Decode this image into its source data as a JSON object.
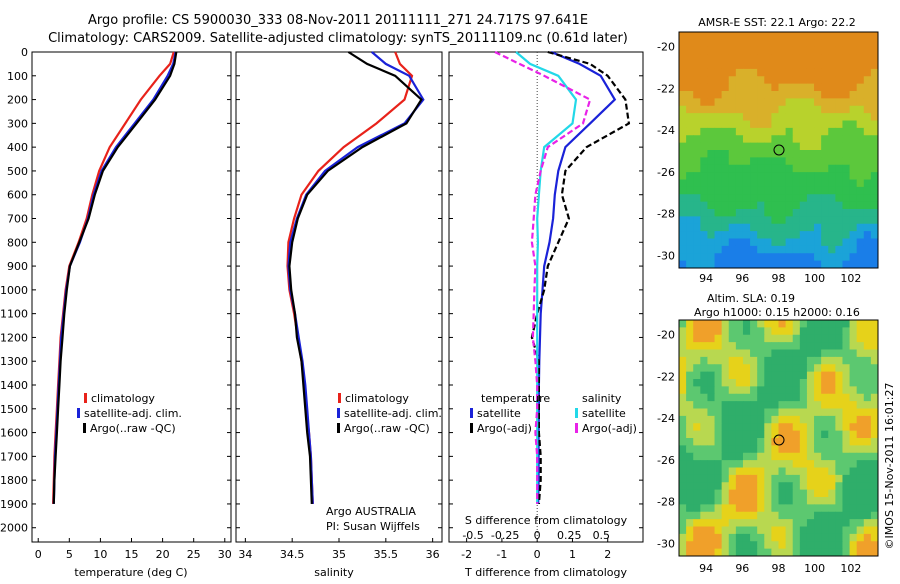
{
  "title_line1": "Argo profile: CS 5900030_333 08-Nov-2011 20111111_271 24.717S 97.641E",
  "title_line2": "Climatology: CARS2009. Satellite-adjusted climatology: synTS_20111109.nc (0.61d later)",
  "colors": {
    "climatology": "#e8221a",
    "satellite": "#1a22d8",
    "argo": "#000000",
    "sat_salinity": "#22d8e8",
    "argo_salinity": "#e822e8"
  },
  "panel1": {
    "xlabel": "temperature (deg C)",
    "xticks": [
      "0",
      "5",
      "10",
      "15",
      "20",
      "25",
      "30"
    ],
    "legend": [
      "climatology",
      "satellite-adj. clim.",
      "Argo(..raw -QC)"
    ]
  },
  "panel2": {
    "xlabel": "salinity",
    "xticks": [
      "34",
      "34.5",
      "35",
      "35.5",
      "36"
    ],
    "legend": [
      "climatology",
      "satellite-adj. clim.",
      "Argo(..raw -QC)"
    ],
    "note1": "Argo AUSTRALIA",
    "note2": "PI: Susan Wijffels"
  },
  "panel3": {
    "xlabel": "T difference from climatology",
    "top_label": "S difference from climatology",
    "xticks": [
      "-2",
      "-1",
      "0",
      "1",
      "2"
    ],
    "top_ticks": [
      "-0.5",
      "-0.25",
      "0",
      "0.25",
      "0.5"
    ],
    "legend_temp_title": "temperature",
    "legend_sal_title": "salinity",
    "legend_temp": [
      "satellite",
      "Argo(-adj)"
    ],
    "legend_sal": [
      "satellite",
      "Argo(-adj)"
    ]
  },
  "depth_ticks": [
    "0",
    "100",
    "200",
    "300",
    "400",
    "500",
    "600",
    "700",
    "800",
    "900",
    "1000",
    "1100",
    "1200",
    "1300",
    "1400",
    "1500",
    "1600",
    "1700",
    "1800",
    "1900",
    "2000"
  ],
  "map1": {
    "title": "AMSR-E SST: 22.1  Argo: 22.2",
    "xticks": [
      "94",
      "96",
      "98",
      "100",
      "102"
    ],
    "yticks": [
      "-20",
      "-22",
      "-24",
      "-26",
      "-28",
      "-30"
    ]
  },
  "map2": {
    "title1": "Altim. SLA: 0.19",
    "title2": "Argo h1000: 0.15 h2000: 0.16",
    "xticks": [
      "94",
      "96",
      "98",
      "100",
      "102"
    ],
    "yticks": [
      "-20",
      "-22",
      "-24",
      "-26",
      "-28",
      "-30"
    ]
  },
  "footer": "©IMOS 15-Nov-2011 16:01:27",
  "chart_data": [
    {
      "type": "line",
      "xlabel": "temperature (deg C)",
      "ylabel": "",
      "xlim": [
        -1,
        31
      ],
      "ylim": [
        2060,
        0
      ],
      "series": [
        {
          "name": "climatology",
          "x": [
            21.8,
            21.2,
            19.5,
            16.5,
            14,
            11.5,
            9.8,
            8.7,
            7.8,
            6.5,
            5,
            4.4,
            4,
            3.6,
            3.4,
            3.2,
            3,
            2.8,
            2.6,
            2.5,
            2.4
          ],
          "y": [
            0,
            50,
            100,
            200,
            300,
            400,
            500,
            600,
            700,
            800,
            900,
            1000,
            1100,
            1200,
            1300,
            1400,
            1500,
            1600,
            1700,
            1800,
            1900
          ]
        },
        {
          "name": "satellite-adj. clim.",
          "x": [
            22.1,
            21.7,
            20.8,
            18.5,
            15.5,
            12.5,
            10.2,
            8.9,
            8,
            6.7,
            5.1,
            4.5,
            4.1,
            3.7,
            3.5,
            3.3,
            3.1,
            2.9,
            2.7,
            2.6,
            2.5
          ],
          "y": [
            0,
            50,
            100,
            200,
            300,
            400,
            500,
            600,
            700,
            800,
            900,
            1000,
            1100,
            1200,
            1300,
            1400,
            1500,
            1600,
            1700,
            1800,
            1900
          ]
        },
        {
          "name": "Argo(..raw -QC)",
          "x": [
            22.2,
            21.9,
            21.2,
            18.8,
            15.8,
            12.8,
            10.4,
            9.1,
            8.1,
            6.6,
            5.1,
            4.6,
            4.2,
            3.9,
            3.6,
            3.4,
            3.2,
            3,
            2.8,
            2.6,
            2.5
          ],
          "y": [
            0,
            50,
            100,
            200,
            300,
            400,
            500,
            600,
            700,
            800,
            900,
            1000,
            1100,
            1200,
            1300,
            1400,
            1500,
            1600,
            1700,
            1800,
            1900
          ]
        }
      ]
    },
    {
      "type": "line",
      "xlabel": "salinity",
      "ylabel": "",
      "xlim": [
        33.9,
        36.1
      ],
      "ylim": [
        2060,
        0
      ],
      "series": [
        {
          "name": "climatology",
          "x": [
            35.6,
            35.65,
            35.78,
            35.7,
            35.4,
            35.05,
            34.78,
            34.6,
            34.52,
            34.46,
            34.45,
            34.47,
            34.52,
            34.56,
            34.6,
            34.63,
            34.65,
            34.68,
            34.7,
            34.71,
            34.72
          ],
          "y": [
            0,
            50,
            100,
            200,
            300,
            400,
            500,
            600,
            700,
            800,
            900,
            1000,
            1100,
            1200,
            1300,
            1400,
            1500,
            1600,
            1700,
            1800,
            1900
          ]
        },
        {
          "name": "satellite-adj. clim.",
          "x": [
            35.35,
            35.5,
            35.75,
            35.9,
            35.7,
            35.2,
            34.85,
            34.65,
            34.55,
            34.48,
            34.46,
            34.48,
            34.53,
            34.57,
            34.61,
            34.64,
            34.66,
            34.68,
            34.7,
            34.71,
            34.72
          ],
          "y": [
            0,
            50,
            100,
            200,
            300,
            400,
            500,
            600,
            700,
            800,
            900,
            1000,
            1100,
            1200,
            1300,
            1400,
            1500,
            1600,
            1700,
            1800,
            1900
          ]
        },
        {
          "name": "Argo(..raw -QC)",
          "x": [
            35.1,
            35.3,
            35.6,
            35.88,
            35.72,
            35.25,
            34.88,
            34.66,
            34.56,
            34.5,
            34.47,
            34.49,
            34.53,
            34.55,
            34.6,
            34.62,
            34.64,
            34.66,
            34.69,
            34.7,
            34.71
          ],
          "y": [
            0,
            50,
            100,
            200,
            300,
            400,
            500,
            600,
            700,
            800,
            900,
            1000,
            1100,
            1200,
            1300,
            1400,
            1500,
            1600,
            1700,
            1800,
            1900
          ]
        }
      ]
    },
    {
      "type": "line",
      "xlabel": "T difference from climatology",
      "ylabel": "",
      "xlim": [
        -2.5,
        3
      ],
      "ylim": [
        2060,
        0
      ],
      "series": [
        {
          "name": "temperature satellite",
          "x": [
            0.4,
            1.2,
            1.8,
            2.2,
            1.5,
            0.8,
            0.6,
            0.5,
            0.45,
            0.35,
            0.2,
            0.15,
            0.1,
            0.08,
            0.06,
            0.05,
            0.05,
            0.04,
            0.04,
            0.04,
            0.03
          ],
          "y": [
            0,
            50,
            100,
            200,
            300,
            400,
            500,
            600,
            700,
            800,
            900,
            1000,
            1100,
            1200,
            1300,
            1400,
            1500,
            1600,
            1700,
            1800,
            1900
          ]
        },
        {
          "name": "temperature Argo(-adj)",
          "x": [
            0.3,
            1.5,
            2.0,
            2.5,
            2.6,
            1.4,
            0.8,
            0.7,
            0.9,
            0.6,
            0.3,
            0.2,
            0.0,
            -0.15,
            0.05,
            0.05,
            0.05,
            0.05,
            0.1,
            0.1,
            0.05
          ],
          "y": [
            0,
            50,
            100,
            200,
            300,
            400,
            500,
            600,
            700,
            800,
            900,
            1000,
            1100,
            1200,
            1300,
            1400,
            1500,
            1600,
            1700,
            1800,
            1900
          ]
        },
        {
          "name": "salinity satellite",
          "x": [
            -0.6,
            -0.2,
            0.6,
            1.1,
            1.0,
            0.2,
            0.1,
            0.05,
            0.0,
            0.02,
            0.0,
            0.0,
            0.0,
            0.0,
            0.0,
            0.0,
            0.0,
            0.0,
            0.0,
            0.0,
            0.0
          ],
          "y": [
            0,
            50,
            100,
            200,
            300,
            400,
            500,
            600,
            700,
            800,
            900,
            1000,
            1100,
            1200,
            1300,
            1400,
            1500,
            1600,
            1700,
            1800,
            1900
          ]
        },
        {
          "name": "salinity Argo(-adj)",
          "x": [
            -1.2,
            -0.5,
            0.2,
            1.5,
            1.3,
            0.3,
            0.1,
            -0.05,
            -0.1,
            -0.15,
            -0.05,
            -0.08,
            -0.1,
            -0.12,
            -0.05,
            0.0,
            0.0,
            -0.05,
            0.0,
            0.0,
            0.0
          ],
          "y": [
            0,
            50,
            100,
            200,
            300,
            400,
            500,
            600,
            700,
            800,
            900,
            1000,
            1100,
            1200,
            1300,
            1400,
            1500,
            1600,
            1700,
            1800,
            1900
          ]
        }
      ]
    }
  ]
}
